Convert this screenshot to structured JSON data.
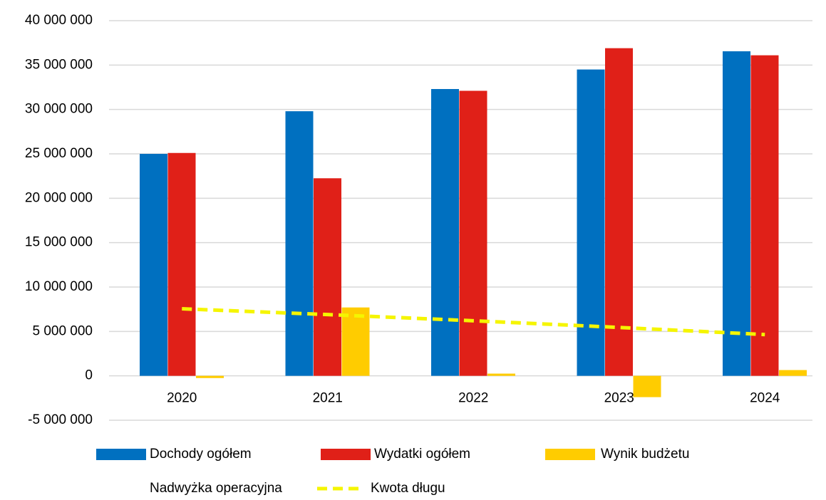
{
  "chart_data": {
    "type": "bar",
    "categories": [
      "2020",
      "2021",
      "2022",
      "2023",
      "2024"
    ],
    "series": [
      {
        "name": "Dochody ogółem",
        "color": "#0070c0",
        "values": [
          25000000,
          29800000,
          32300000,
          34500000,
          36550000
        ]
      },
      {
        "name": "Wydatki ogółem",
        "color": "#e02018",
        "values": [
          25100000,
          22250000,
          32100000,
          36900000,
          36100000
        ]
      },
      {
        "name": "Wynik budżetu",
        "color": "#ffcc00",
        "values": [
          -250000,
          7700000,
          250000,
          -2400000,
          650000
        ]
      },
      {
        "name": "Nadwyżka operacyjna",
        "color": "#ffffff",
        "values": [
          null,
          null,
          null,
          null,
          null
        ]
      },
      {
        "name": "Kwota długu",
        "type": "line",
        "color": "#f5f500",
        "dashed": true,
        "values": [
          7550000,
          6900000,
          6200000,
          5450000,
          4650000
        ]
      }
    ],
    "ylim": [
      -5000000,
      40000000
    ],
    "yticks": [
      {
        "value": -5000000,
        "label": "-5 000 000"
      },
      0,
      {
        "value": 5000000,
        "label": "5 000 000"
      },
      {
        "value": 10000000,
        "label": "10 000 000"
      },
      {
        "value": 15000000,
        "label": "15 000 000"
      },
      {
        "value": 20000000,
        "label": "20 000 000"
      },
      {
        "value": 25000000,
        "label": "25 000 000"
      },
      {
        "value": 30000000,
        "label": "30 000 000"
      },
      {
        "value": 35000000,
        "label": "35 000 000"
      },
      {
        "value": 40000000,
        "label": "40 000 000"
      }
    ],
    "grid": true,
    "legend": "bottom"
  }
}
